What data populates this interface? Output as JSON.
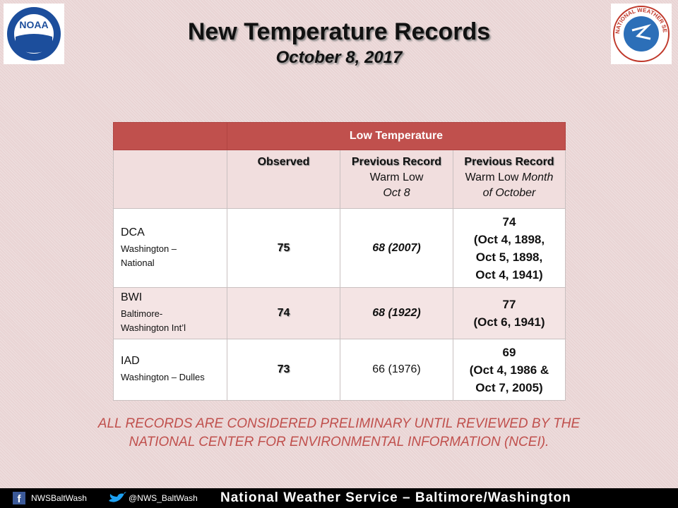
{
  "header": {
    "title": "New Temperature Records",
    "subtitle": "October 8, 2017"
  },
  "logos": {
    "left": "NOAA",
    "right": "NATIONAL WEATHER SERVICE"
  },
  "table": {
    "group_header": "Low Temperature",
    "columns": [
      {
        "lines": [
          "Observed"
        ]
      },
      {
        "lines": [
          "Previous Record",
          "Warm Low",
          "Oct 8"
        ]
      },
      {
        "lines": [
          "Previous Record",
          "Warm Low",
          "Month",
          "of October"
        ]
      }
    ],
    "rows": [
      {
        "code": "DCA",
        "name": "Washington – National",
        "observed": "75",
        "record_day": "68 (2007)",
        "record_month": [
          "74",
          "(Oct 4, 1898,",
          "Oct 5, 1898,",
          "Oct 4, 1941)"
        ]
      },
      {
        "code": "BWI",
        "name": "Baltimore-Washington Int’l",
        "observed": "74",
        "record_day": "68 (1922)",
        "record_month": [
          "77",
          "(Oct 6, 1941)"
        ]
      },
      {
        "code": "IAD",
        "name": "Washington – Dulles",
        "observed": "73",
        "record_day": "66 (1976)",
        "record_month": [
          "69",
          "(Oct 4, 1986 &",
          "Oct 7, 2005)"
        ]
      }
    ]
  },
  "note": "ALL RECORDS ARE CONSIDERED PRELIMINARY UNTIL REVIEWED BY THE NATIONAL CENTER FOR ENVIRONMENTAL INFORMATION (NCEI).",
  "footer": {
    "facebook": "NWSBaltWash",
    "twitter": "@NWS_BaltWash",
    "banner": "National Weather Service – Baltimore/Washington"
  }
}
